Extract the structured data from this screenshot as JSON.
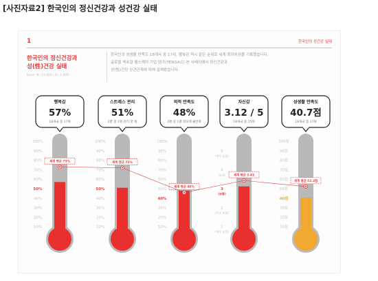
{
  "caption": "[사진자료2] 한국인의 정신건강과 성건강 실태",
  "panel": {
    "number": "1",
    "tag": "한국인의 성건강 실태",
    "title_lines": [
      "한국인의 정신건강과",
      "성(性)건강 실태"
    ],
    "source": "Base: N=13,000 / N=1,000",
    "description_lines": [
      "한국인의 성생활 만족도 18개국 중 17위, 행복감 역시 같은 순위로 세계 최하위권을 기록했습니다.",
      "글로벌 섹슈얼 웰스케어 기업 텐가(TENGA)는 본 서베이에서 정신건강과",
      "성(性)건강 상관관계에 대해 살펴봤습니다."
    ]
  },
  "colors": {
    "accent": "#e73b3b",
    "bar_red": "#ea2f2f",
    "bar_orange": "#f0a830",
    "track": "#b9b9b9",
    "axis_red": "#e73b3b",
    "axis_orange": "#f0a830",
    "axis_gray": "#c4c4c4"
  },
  "chart_data": [
    {
      "type": "bar",
      "indicator": "행복감",
      "value_label": "57%",
      "subtitle": "18개국 중 17위",
      "value": 57,
      "world_average": 73,
      "avg_label": "세계 평균 73%",
      "ylim": [
        0,
        100
      ],
      "ticks": [
        "100%",
        "90%",
        "80%",
        "70%",
        "60%",
        "50%",
        "40%",
        "30%",
        "20%",
        "10%"
      ],
      "highlight_tick": "50%",
      "fill": "red"
    },
    {
      "type": "bar",
      "indicator": "스트레스 관리",
      "value_label": "51%",
      "subtitle": "2명 중 1명 관리 못 해",
      "value": 51,
      "world_average": 72,
      "avg_label": "세계 평균 72%",
      "ylim": [
        0,
        100
      ],
      "ticks": [
        "100%",
        "90%",
        "80%",
        "70%",
        "60%",
        "50%",
        "40%",
        "30%",
        "20%",
        "10%"
      ],
      "highlight_tick": "50%",
      "fill": "red"
    },
    {
      "type": "bar",
      "indicator": "외적 만족도",
      "value_label": "48%",
      "subtitle": "2명 중 1명 외모에 불만족",
      "value": 48,
      "world_average": 46,
      "avg_label": "세계 평균 46%",
      "ylim": [
        0,
        100
      ],
      "ticks": [
        "100%",
        "90%",
        "80%",
        "70%",
        "60%",
        "50%",
        "40%",
        "30%",
        "20%",
        "10%"
      ],
      "highlight_tick": "40%",
      "fill": "red"
    },
    {
      "type": "bar",
      "indicator": "자신감",
      "value_label": "3.12 / 5",
      "subtitle": "18개국 중 15위",
      "value": 3.12,
      "world_average": 3.43,
      "avg_label": "세계 평균 3.43",
      "ylim": [
        0.5,
        5.5
      ],
      "ticks": [
        "5\n(매우 높음)",
        "4\n(높음)",
        "3\n(보통)",
        "2\n(다소 낮음)",
        "1\n(매우 낮음)"
      ],
      "tick_values": [
        5,
        4,
        3,
        2,
        1
      ],
      "highlight_tick": "3\n(보통)",
      "fill": "red"
    },
    {
      "type": "bar",
      "indicator": "성생활 만족도",
      "value_label": "40.7점",
      "subtitle": "18개국 중 17위",
      "value": 40.7,
      "world_average": 52.3,
      "avg_label": "세계 평균 52.3점",
      "ylim": [
        0,
        100
      ],
      "ticks": [
        "100점",
        "90점",
        "80점",
        "70점",
        "60점",
        "50점",
        "40점",
        "30점",
        "20점",
        "10점"
      ],
      "highlight_tick": "40점",
      "fill": "orange"
    }
  ]
}
